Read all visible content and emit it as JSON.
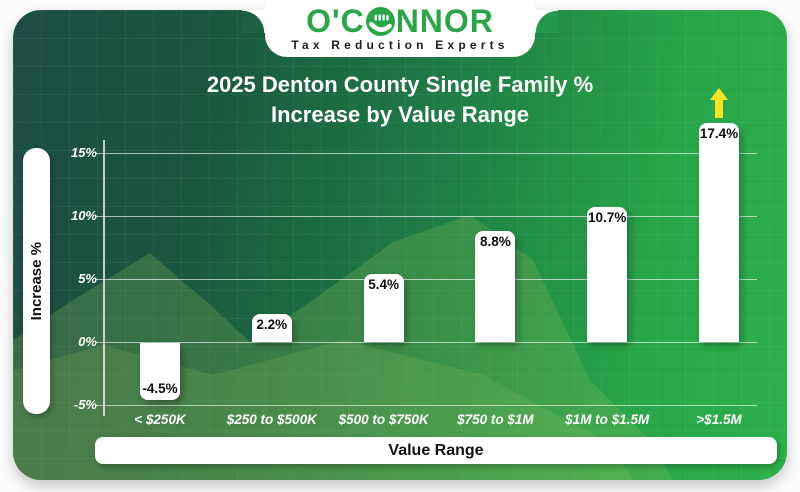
{
  "logo": {
    "text_before_icon": "O'C",
    "text_after_icon": "NNOR",
    "tagline": "Tax Reduction Experts",
    "brand_green": "#2aa648"
  },
  "title": {
    "line1": "2025 Denton County Single Family %",
    "line2": "Increase by Value Range"
  },
  "chart_data": {
    "type": "bar",
    "title": "2025 Denton County Single Family % Increase by Value Range",
    "categories": [
      "< $250K",
      "$250 to $500K",
      "$500 to $750K",
      "$750 to $1M",
      "$1M to $1.5M",
      ">$1.5M"
    ],
    "values": [
      -4.5,
      2.2,
      5.4,
      8.8,
      10.7,
      17.4
    ],
    "bar_labels": [
      "-4.5%",
      "2.2%",
      "5.4%",
      "8.8%",
      "10.7%",
      "17.4%"
    ],
    "xlabel": "Value Range",
    "ylabel": "Increase %",
    "ylim": [
      -5,
      15
    ],
    "ytick_labels": [
      "15%",
      "10%",
      "5%",
      "0%",
      "-5%"
    ],
    "grid": "horizontal",
    "legend": "none",
    "bar_color": "#ffffff",
    "annotation": {
      "type": "up-arrow",
      "category": ">$1.5M",
      "color": "#f5e41f"
    }
  },
  "colors": {
    "card_dark": "#1e4c45",
    "card_bright": "#2db14d",
    "grid_line": "#ffffff",
    "bar_label_text": "#0d0d0d",
    "axis_text": "#ffffff",
    "arrow_yellow": "#f5e41f"
  }
}
